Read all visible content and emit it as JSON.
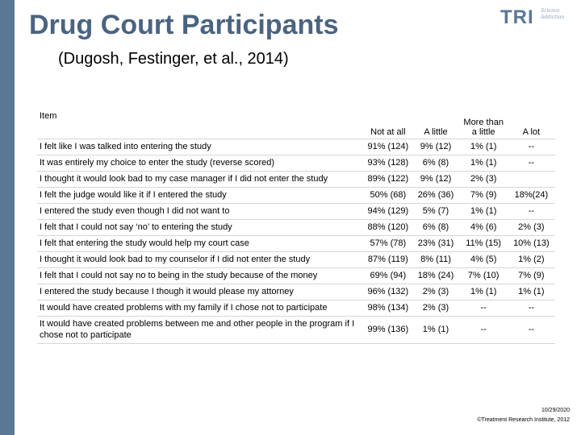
{
  "slide": {
    "title": "Drug Court Participants",
    "subtitle": "(Dugosh, Festinger, et al., 2014)"
  },
  "logo": {
    "text": "TRI",
    "tagline": [
      "Science",
      "Addiction"
    ],
    "color": "#5a7894"
  },
  "table": {
    "headers": [
      "Item",
      "Not at all",
      "A little",
      "More than a little",
      "A lot"
    ],
    "rows": [
      {
        "item": "I felt like I was talked into entering the study",
        "not_at_all": "91% (124)",
        "a_little": "9% (12)",
        "more_than_a_little": "1% (1)",
        "a_lot": "--"
      },
      {
        "item": "It was entirely my choice to enter the study (reverse scored)",
        "not_at_all": "93% (128)",
        "a_little": "6% (8)",
        "more_than_a_little": "1% (1)",
        "a_lot": "--"
      },
      {
        "item": "I thought it would look bad to my case manager if I did not enter the study",
        "not_at_all": "89% (122)",
        "a_little": "9% (12)",
        "more_than_a_little": "2% (3)",
        "a_lot": ""
      },
      {
        "item": "I felt the judge would like it if I entered the study",
        "not_at_all": "50% (68)",
        "a_little": "26% (36)",
        "more_than_a_little": "7% (9)",
        "a_lot": "18%(24)"
      },
      {
        "item": "I entered the study even though I did not want to",
        "not_at_all": "94% (129)",
        "a_little": "5% (7)",
        "more_than_a_little": "1% (1)",
        "a_lot": "--"
      },
      {
        "item": "I felt that I could not say ‘no’ to entering the study",
        "not_at_all": "88% (120)",
        "a_little": "6% (8)",
        "more_than_a_little": "4% (6)",
        "a_lot": "2% (3)"
      },
      {
        "item": "I felt that entering the study would help my court case",
        "not_at_all": "57% (78)",
        "a_little": "23% (31)",
        "more_than_a_little": "11% (15)",
        "a_lot": "10% (13)"
      },
      {
        "item": "I thought it would look bad to my counselor if I did not enter the study",
        "not_at_all": "87% (119)",
        "a_little": "8% (11)",
        "more_than_a_little": "4% (5)",
        "a_lot": "1% (2)"
      },
      {
        "item": "I felt that I could not say no to being in the study because of the money",
        "not_at_all": "69% (94)",
        "a_little": "18% (24)",
        "more_than_a_little": "7% (10)",
        "a_lot": "7% (9)"
      },
      {
        "item": "I entered the study because I though it would please my attorney",
        "not_at_all": "96% (132)",
        "a_little": "2% (3)",
        "more_than_a_little": "1% (1)",
        "a_lot": "1% (1)"
      },
      {
        "item": "It would have created problems with my family if I chose not to participate",
        "not_at_all": "98% (134)",
        "a_little": "2% (3)",
        "more_than_a_little": "--",
        "a_lot": "--"
      },
      {
        "item": "It would have created problems between me and other people in the program if I chose not to participate",
        "not_at_all": "99% (136)",
        "a_little": "1% (1)",
        "more_than_a_little": "--",
        "a_lot": "--"
      }
    ]
  },
  "footer": {
    "date": "10/29/2020",
    "copyright": "©Treatment Research Institute, 2012"
  }
}
